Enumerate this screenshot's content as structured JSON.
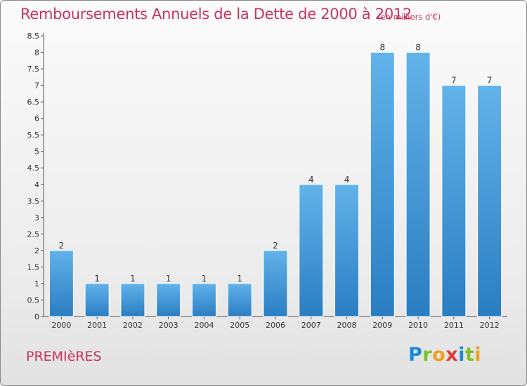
{
  "header": {
    "title": "Remboursements Annuels de la Dette de 2000 à 2012",
    "unit_note": "(en milliers d'€)"
  },
  "footer": {
    "commune": "PREMIèRES",
    "logo": {
      "letters": [
        {
          "char": "P",
          "color": "#1e88d6"
        },
        {
          "char": "r",
          "color": "#7cbf2a"
        },
        {
          "char": "o",
          "color": "#f0a020"
        },
        {
          "char": "x",
          "color": "#e03a3a"
        },
        {
          "char": "i",
          "color": "#1e88d6"
        },
        {
          "char": "t",
          "color": "#7cbf2a"
        },
        {
          "char": "i",
          "color": "#f0a020"
        }
      ]
    }
  },
  "colors": {
    "accent": "#c8345d",
    "bar_top": "#62b3ea",
    "bar_bottom": "#2a7dc2"
  },
  "chart_data": {
    "type": "bar",
    "categories": [
      "2000",
      "2001",
      "2002",
      "2003",
      "2004",
      "2005",
      "2006",
      "2007",
      "2008",
      "2009",
      "2010",
      "2011",
      "2012"
    ],
    "values": [
      2,
      1,
      1,
      1,
      1,
      1,
      2,
      4,
      4,
      8,
      8,
      7,
      7
    ],
    "data_labels": [
      "2",
      "1",
      "1",
      "1",
      "1",
      "1",
      "2",
      "4",
      "4",
      "8",
      "8",
      "7",
      "7"
    ],
    "y_ticks": [
      "0",
      "0.5",
      "1",
      "1.5",
      "2",
      "2.5",
      "3",
      "3.5",
      "4",
      "4.5",
      "5",
      "5.5",
      "6",
      "6.5",
      "7",
      "7.5",
      "8",
      "8.5"
    ],
    "ylim": [
      0,
      8.5
    ],
    "title": "Remboursements Annuels de la Dette de 2000 à 2012",
    "xlabel": "",
    "ylabel": "",
    "grid": false,
    "legend": "none"
  }
}
